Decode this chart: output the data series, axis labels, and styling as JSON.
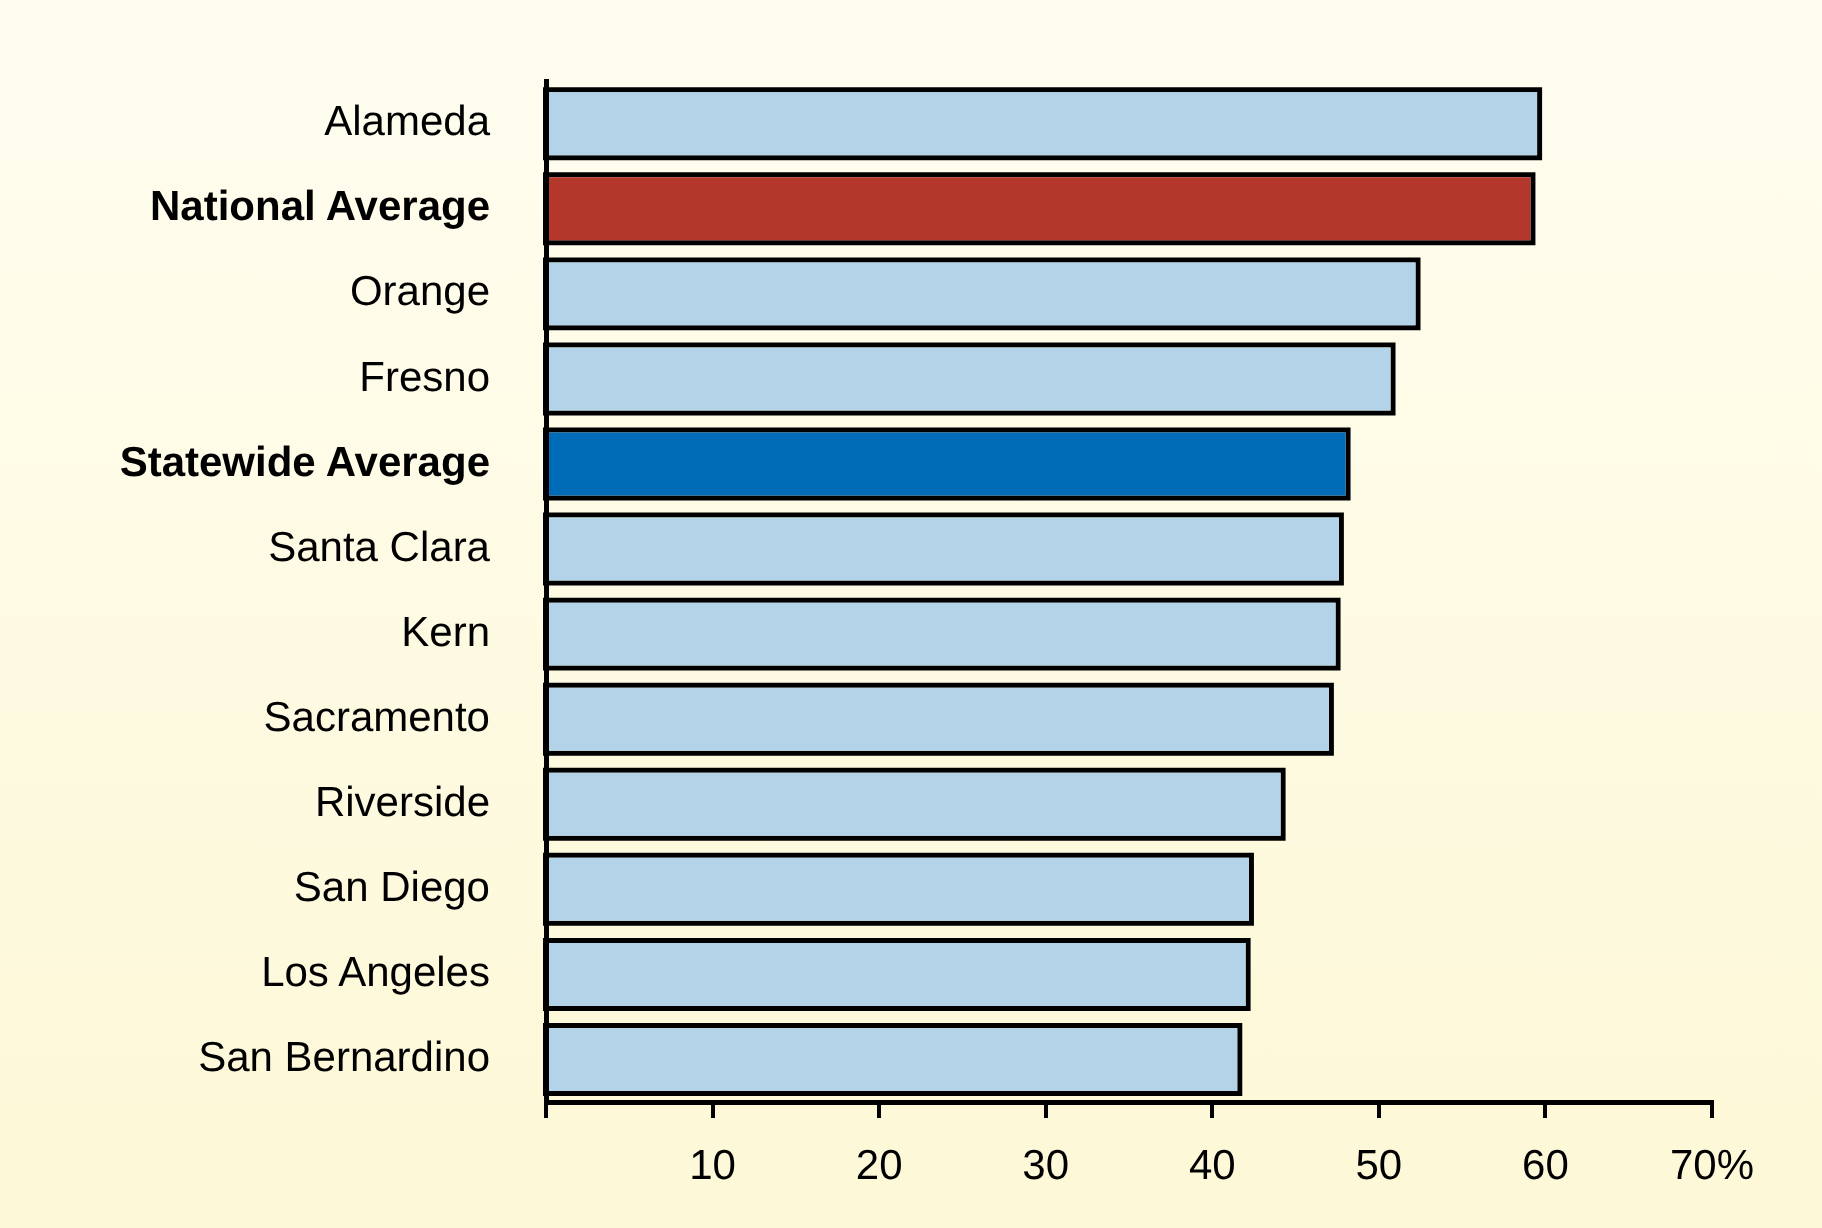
{
  "chart_data": {
    "type": "bar",
    "orientation": "horizontal",
    "categories": [
      "Alameda",
      "National Average",
      "Orange",
      "Fresno",
      "Statewide Average",
      "Santa Clara",
      "Kern",
      "Sacramento",
      "Riverside",
      "San Diego",
      "Los Angeles",
      "San Bernardino"
    ],
    "values": [
      59.5,
      59.1,
      52.2,
      50.7,
      48.0,
      47.6,
      47.4,
      47.0,
      44.1,
      42.2,
      42.0,
      41.5
    ],
    "colors": [
      "#b3d3e8",
      "#b3372b",
      "#b3d3e8",
      "#b3d3e8",
      "#006bb6",
      "#b3d3e8",
      "#b3d3e8",
      "#b3d3e8",
      "#b3d3e8",
      "#b3d3e8",
      "#b3d3e8",
      "#b3d3e8"
    ],
    "xlim": [
      0,
      70
    ],
    "xticks": [
      {
        "value": 0,
        "label": null
      },
      10,
      20,
      30,
      40,
      50,
      60,
      {
        "value": 70,
        "label": "70%"
      }
    ],
    "grid": false,
    "legend": false
  }
}
